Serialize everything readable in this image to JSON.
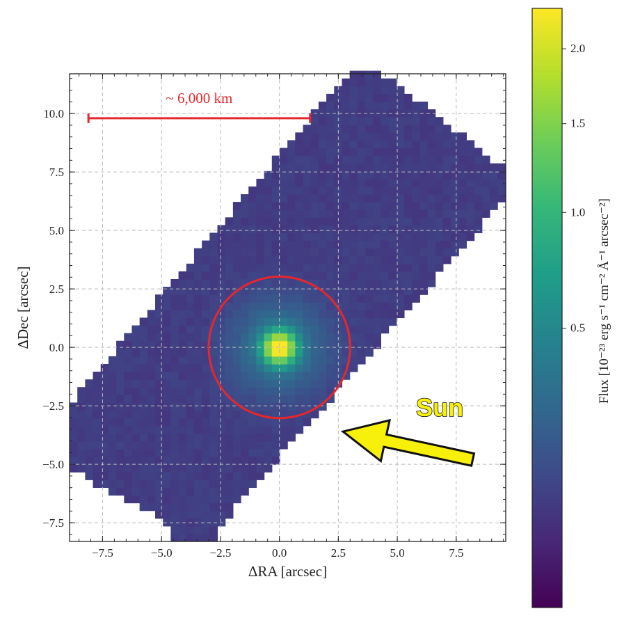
{
  "chart_data": {
    "type": "heatmap",
    "xlabel": "ΔRA [arcsec]",
    "ylabel": "ΔDec [arcsec]",
    "xlim": [
      -8.9,
      9.6
    ],
    "ylim": [
      -8.3,
      11.7
    ],
    "xticks": [
      -7.5,
      -5.0,
      -2.5,
      0.0,
      2.5,
      5.0,
      7.5
    ],
    "xtick_labels": [
      "−7.5",
      "−5.0",
      "−2.5",
      "0.0",
      "2.5",
      "5.0",
      "7.5"
    ],
    "yticks": [
      -7.5,
      -5.0,
      -2.5,
      0.0,
      2.5,
      5.0,
      7.5,
      10.0
    ],
    "ytick_labels": [
      "−7.5",
      "−5.0",
      "−2.5",
      "0.0",
      "2.5",
      "5.0",
      "7.5",
      "10.0"
    ],
    "grid": true,
    "colormap": "viridis",
    "norm": "sqrt",
    "color_range": [
      0.0,
      2.3
    ],
    "colorbar": {
      "label": "Flux [10⁻²³ erg s⁻¹ cm⁻² Å⁻¹ arcsec⁻²]",
      "ticks": [
        0.5,
        1.0,
        1.5,
        2.0
      ],
      "tick_labels": [
        "0.5",
        "1.0",
        "1.5",
        "2.0"
      ],
      "placement": "right"
    },
    "pixel_size": 0.33,
    "footprint_polygon": [
      [
        -8.9,
        -2.4
      ],
      [
        2.9,
        11.7
      ],
      [
        4.4,
        11.7
      ],
      [
        9.6,
        7.6
      ],
      [
        9.6,
        6.4
      ],
      [
        -2.6,
        -7.7
      ],
      [
        -2.6,
        -8.3
      ],
      [
        -4.6,
        -8.3
      ],
      [
        -4.6,
        -7.6
      ],
      [
        -8.9,
        -5.2
      ]
    ],
    "source_model": {
      "center": [
        0.0,
        0.0
      ],
      "background": 0.07,
      "peak": 2.2,
      "core_sigma": 0.45,
      "halo_amplitude": 0.32,
      "halo_sigma": 1.3
    },
    "annotations": {
      "aperture_circle": {
        "center": [
          0.0,
          0.0
        ],
        "radius": 3.0,
        "color": "#e8262b"
      },
      "scale_bar": {
        "x_start": -8.1,
        "x_end": 1.3,
        "y": 9.8,
        "label": "~ 6,000 km",
        "color": "#e8262b"
      },
      "sun_arrow": {
        "from": [
          8.2,
          -4.8
        ],
        "to": [
          2.7,
          -3.6
        ],
        "label": "Sun",
        "color": "#f7f00a"
      }
    }
  }
}
